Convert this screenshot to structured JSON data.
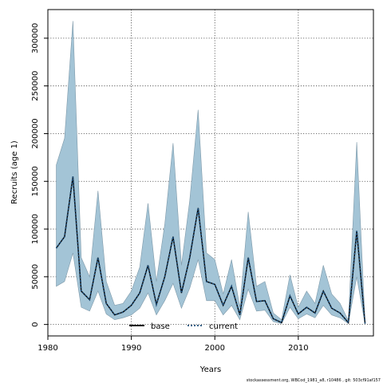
{
  "chart_data": {
    "type": "area",
    "xlabel": "Years",
    "ylabel": "Recruits (age 1)",
    "xlim": [
      1980,
      2019
    ],
    "ylim": [
      -12000,
      330000
    ],
    "xticks": [
      1980,
      1990,
      2000,
      2010
    ],
    "yticks": [
      0,
      50000,
      100000,
      150000,
      200000,
      250000,
      300000
    ],
    "grid": true,
    "legend_position": "bottom-center",
    "band_color": "#a3c4d6",
    "band_edge_color": "#7f9aaa",
    "x": [
      1981,
      1982,
      1983,
      1984,
      1985,
      1986,
      1987,
      1988,
      1989,
      1990,
      1991,
      1992,
      1993,
      1994,
      1995,
      1996,
      1997,
      1998,
      1999,
      2000,
      2001,
      2002,
      2003,
      2004,
      2005,
      2006,
      2007,
      2008,
      2009,
      2010,
      2011,
      2012,
      2013,
      2014,
      2015,
      2016,
      2017,
      2018
    ],
    "band_upper": [
      167000,
      195000,
      318000,
      70000,
      50000,
      140000,
      45000,
      20000,
      22000,
      35000,
      60000,
      127000,
      45000,
      105000,
      190000,
      62000,
      130000,
      225000,
      75000,
      68000,
      32000,
      68000,
      18000,
      118000,
      40000,
      45000,
      12000,
      5000,
      52000,
      18000,
      35000,
      22000,
      62000,
      32000,
      22000,
      4000,
      191000,
      2000
    ],
    "band_lower": [
      40000,
      45000,
      75000,
      18000,
      14000,
      35000,
      11000,
      5000,
      7000,
      10000,
      17000,
      33000,
      10000,
      25000,
      43000,
      17000,
      38000,
      68000,
      25000,
      25000,
      10000,
      20000,
      5000,
      37000,
      14000,
      15000,
      3000,
      1000,
      18000,
      6000,
      11000,
      7000,
      20000,
      10000,
      7000,
      1000,
      50000,
      500
    ],
    "series": [
      {
        "name": "base",
        "color": "#000000",
        "style": "solid",
        "values": [
          80000,
          92000,
          155000,
          35000,
          26000,
          70000,
          22000,
          10000,
          13000,
          20000,
          33000,
          62000,
          21000,
          50000,
          92000,
          33000,
          70000,
          122000,
          45000,
          42000,
          20000,
          40000,
          10000,
          70000,
          24000,
          25000,
          6000,
          2000,
          30000,
          11000,
          18000,
          12000,
          35000,
          17000,
          12000,
          2000,
          98000,
          1000
        ]
      },
      {
        "name": "current",
        "color": "#1f4e79",
        "style": "dotted",
        "values": [
          80000,
          92000,
          155000,
          35000,
          26000,
          70000,
          22000,
          10000,
          13000,
          20000,
          33000,
          62000,
          21000,
          50000,
          92000,
          33000,
          70000,
          122000,
          45000,
          42000,
          20000,
          40000,
          10000,
          70000,
          24000,
          25000,
          6000,
          2000,
          30000,
          11000,
          18000,
          12000,
          35000,
          17000,
          12000,
          2000,
          98000,
          1000
        ]
      }
    ]
  },
  "footnote": "stockassessment.org, WBCod_1981_a8, r10486 , git: 503cf91af157"
}
